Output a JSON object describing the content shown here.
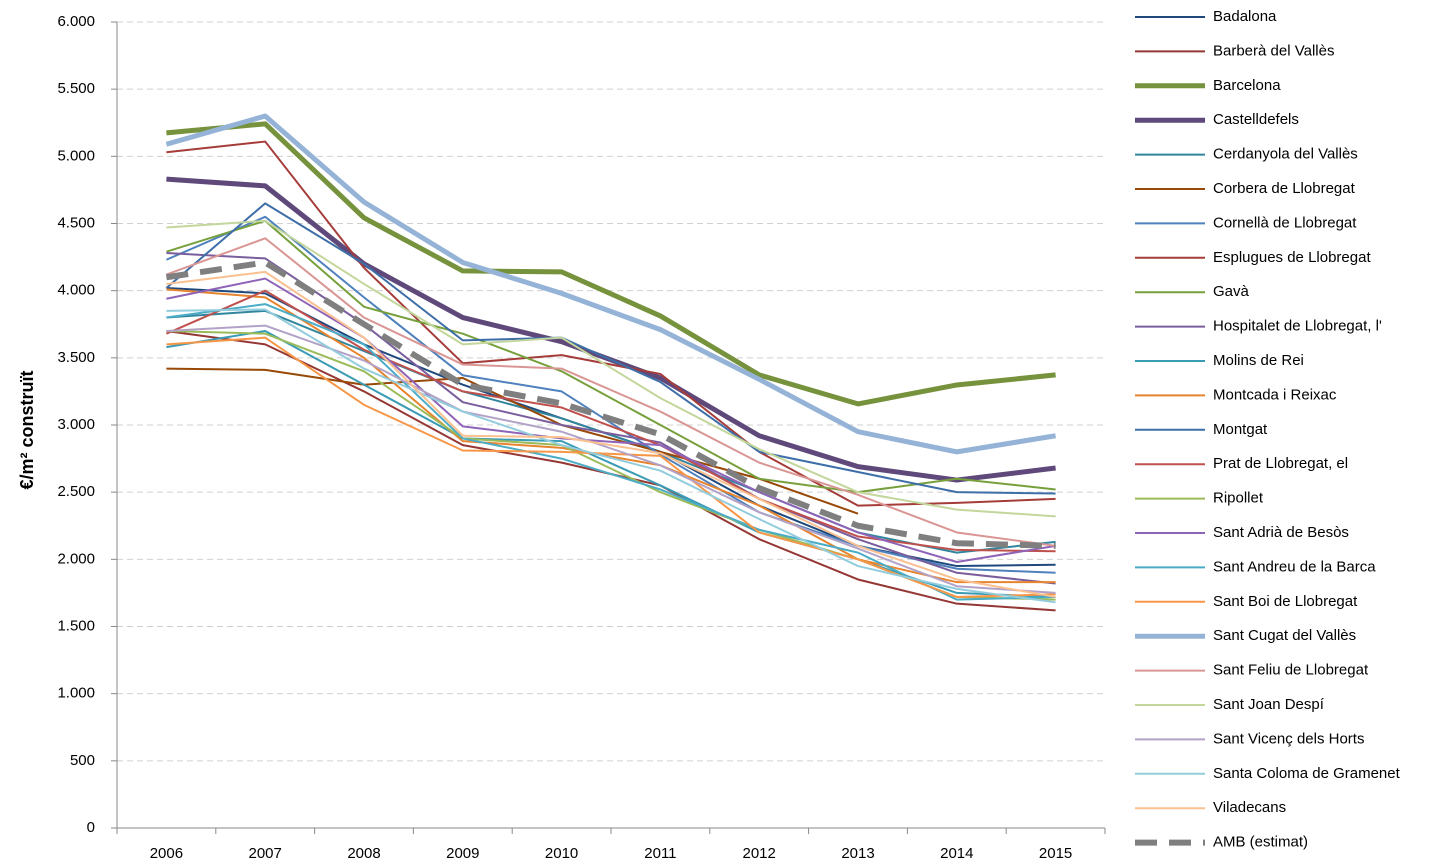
{
  "chart_data": {
    "type": "line",
    "y_label": "€/m² construït",
    "categories": [
      "2006",
      "2007",
      "2008",
      "2009",
      "2010",
      "2011",
      "2012",
      "2013",
      "2014",
      "2015"
    ],
    "ylim": [
      0,
      6000
    ],
    "yticks": [
      0,
      500,
      {
        "value": 1000,
        "label": "1.000"
      },
      {
        "value": 1500,
        "label": "1.500"
      },
      {
        "value": 2000,
        "label": "2.000"
      },
      {
        "value": 2500,
        "label": "2.500"
      },
      {
        "value": 3000,
        "label": "3.000"
      },
      {
        "value": 3500,
        "label": "3.500"
      },
      {
        "value": 4000,
        "label": "4.000"
      },
      {
        "value": 4500,
        "label": "4.500"
      },
      {
        "value": 5000,
        "label": "5.000"
      },
      {
        "value": 5500,
        "label": "5.500"
      },
      {
        "value": 6000,
        "label": "6.000"
      }
    ],
    "grid": true,
    "legend": "right",
    "series": [
      {
        "name": "Badalona",
        "color": "#1f497d",
        "line_width": 2,
        "values": [
          4020,
          3980,
          3600,
          3300,
          3050,
          2800,
          2400,
          2100,
          1950,
          1960
        ]
      },
      {
        "name": "Barberà del Vallès",
        "color": "#953735",
        "line_width": 2,
        "values": [
          3700,
          3600,
          3250,
          2850,
          2720,
          2550,
          2150,
          1850,
          1670,
          1620
        ]
      },
      {
        "name": "Barcelona",
        "color": "#76923c",
        "line_width": 5,
        "values": [
          5175,
          5242,
          4542,
          4147,
          4140,
          3812,
          3373,
          3157,
          3298,
          3373
        ]
      },
      {
        "name": "Castelldefels",
        "color": "#5f497a",
        "line_width": 5,
        "values": [
          4830,
          4780,
          4200,
          3800,
          3620,
          3350,
          2920,
          2690,
          2590,
          2680
        ]
      },
      {
        "name": "Cerdanyola del Vallès",
        "color": "#31859c",
        "line_width": 2,
        "values": [
          3800,
          3850,
          3550,
          3250,
          3050,
          2800,
          2500,
          2200,
          2050,
          2130
        ]
      },
      {
        "name": "Corbera de Llobregat",
        "color": "#984807",
        "line_width": 2,
        "values": [
          3420,
          3410,
          3300,
          3350,
          3000,
          2800,
          2600,
          2340,
          null,
          null
        ]
      },
      {
        "name": "Cornellà de Llobregat",
        "color": "#4f81bd",
        "line_width": 2,
        "values": [
          4230,
          4550,
          3950,
          3370,
          3250,
          2780,
          2350,
          2100,
          1930,
          1900
        ]
      },
      {
        "name": "Esplugues de Llobregat",
        "color": "#a53c3a",
        "line_width": 2,
        "values": [
          5030,
          5110,
          4170,
          3460,
          3520,
          3380,
          2800,
          2400,
          2420,
          2450
        ]
      },
      {
        "name": "Gavà",
        "color": "#77a03c",
        "line_width": 2,
        "values": [
          4290,
          4520,
          3880,
          3680,
          3400,
          3000,
          2600,
          2500,
          2600,
          2520
        ]
      },
      {
        "name": "Hospitalet de Llobregat, l'",
        "color": "#7a5d9c",
        "line_width": 2,
        "values": [
          4280,
          4240,
          3750,
          3170,
          3000,
          2870,
          2450,
          2150,
          1900,
          1820
        ]
      },
      {
        "name": "Molins de Rei",
        "color": "#3a9bb5",
        "line_width": 2,
        "values": [
          3580,
          3700,
          3300,
          2900,
          2880,
          2550,
          2200,
          2000,
          1750,
          1720
        ]
      },
      {
        "name": "Montcada i Reixac",
        "color": "#e7842e",
        "line_width": 2,
        "values": [
          4010,
          3950,
          3500,
          2880,
          2830,
          2700,
          2400,
          2000,
          1830,
          1830
        ]
      },
      {
        "name": "Montgat",
        "color": "#3e6ea8",
        "line_width": 2,
        "values": [
          4020,
          4650,
          4200,
          3630,
          3650,
          3320,
          2800,
          2650,
          2500,
          2490
        ]
      },
      {
        "name": "Prat de Llobregat, el",
        "color": "#c0504d",
        "line_width": 2,
        "values": [
          3680,
          4000,
          3560,
          3250,
          3130,
          2850,
          2450,
          2170,
          2070,
          2060
        ]
      },
      {
        "name": "Ripollet",
        "color": "#9bbb59",
        "line_width": 2,
        "values": [
          3700,
          3680,
          3400,
          2900,
          2850,
          2500,
          2220,
          2000,
          1720,
          1700
        ]
      },
      {
        "name": "Sant Adrià de Besòs",
        "color": "#8e63b8",
        "line_width": 2,
        "values": [
          3940,
          4090,
          3650,
          2990,
          2900,
          2850,
          2500,
          2200,
          1980,
          2100
        ]
      },
      {
        "name": "Sant Andreu de la Barca",
        "color": "#4bacc6",
        "line_width": 2,
        "values": [
          3800,
          3900,
          3600,
          2900,
          2750,
          2520,
          2220,
          2050,
          1700,
          1720
        ]
      },
      {
        "name": "Sant Boi de Llobregat",
        "color": "#f79646",
        "line_width": 2,
        "values": [
          3600,
          3650,
          3150,
          2810,
          2800,
          2770,
          2200,
          2000,
          1720,
          1740
        ]
      },
      {
        "name": "Sant Cugat del Vallès",
        "color": "#95b3d7",
        "line_width": 5,
        "values": [
          5090,
          5300,
          4660,
          4210,
          3980,
          3710,
          3340,
          2950,
          2800,
          2920
        ]
      },
      {
        "name": "Sant Feliu de Llobregat",
        "color": "#d99694",
        "line_width": 2,
        "values": [
          4120,
          4390,
          3800,
          3450,
          3420,
          3100,
          2720,
          2480,
          2200,
          2100
        ]
      },
      {
        "name": "Sant Joan Despí",
        "color": "#c3d69b",
        "line_width": 2,
        "values": [
          4470,
          4520,
          4050,
          3600,
          3650,
          3200,
          2820,
          2500,
          2370,
          2320
        ]
      },
      {
        "name": "Sant Vicenç dels Horts",
        "color": "#b3a2c7",
        "line_width": 2,
        "values": [
          3700,
          3740,
          3480,
          3100,
          2950,
          2700,
          2350,
          2080,
          1800,
          1750
        ]
      },
      {
        "name": "Santa Coloma de Gramenet",
        "color": "#93cddd",
        "line_width": 2,
        "values": [
          3850,
          3860,
          3420,
          3100,
          2850,
          2660,
          2300,
          1950,
          1780,
          1680
        ]
      },
      {
        "name": "Viladecans",
        "color": "#fac090",
        "line_width": 2,
        "values": [
          4050,
          4140,
          3650,
          2920,
          2910,
          2790,
          2450,
          2100,
          1850,
          1720
        ]
      },
      {
        "name": "AMB (estimat)",
        "color": "#7f7f7f",
        "line_width": 6,
        "dashed": true,
        "values": [
          4100,
          4210,
          3750,
          3300,
          3160,
          2930,
          2530,
          2250,
          2120,
          2100
        ]
      }
    ]
  }
}
